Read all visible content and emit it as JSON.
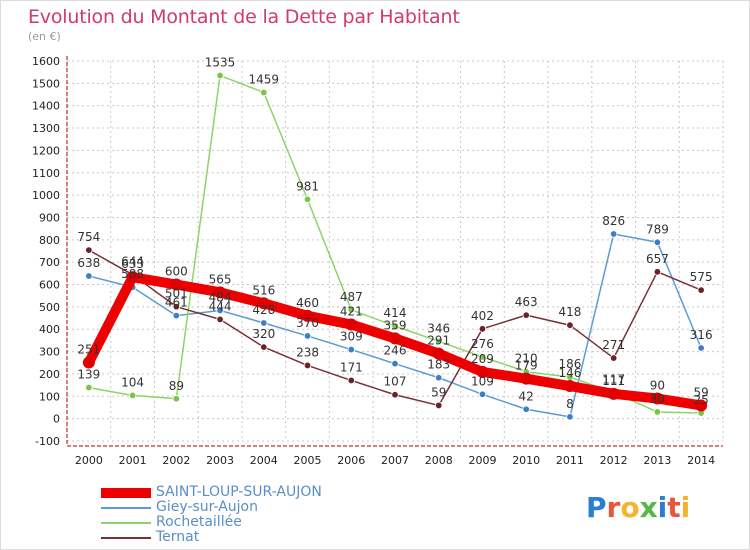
{
  "title": "Evolution du Montant de la Dette par Habitant",
  "subtitle": "(en €)",
  "logo_text": "Proxiti",
  "colors": {
    "title": "#d23a6a",
    "grid": "#c8c8c8",
    "axis": "#b00000"
  },
  "chart_data": {
    "type": "line",
    "title": "Evolution du Montant de la Dette par Habitant",
    "subtitle": "(en €)",
    "xlabel": "",
    "ylabel": "",
    "x": [
      "2000",
      "2001",
      "2002",
      "2003",
      "2004",
      "2005",
      "2006",
      "2007",
      "2008",
      "2009",
      "2010",
      "2011",
      "2012",
      "2013",
      "2014"
    ],
    "ylim": [
      -100,
      1600
    ],
    "yticks": [
      -100,
      0,
      100,
      200,
      300,
      400,
      500,
      600,
      700,
      800,
      900,
      1000,
      1100,
      1200,
      1300,
      1400,
      1500,
      1600
    ],
    "grid": true,
    "legend_position": "bottom-left",
    "series": [
      {
        "name": "SAINT-LOUP-SUR-AUJON",
        "color": "#ee0000",
        "marker": "#e00000",
        "values": [
          251,
          633,
          600,
          565,
          516,
          460,
          421,
          359,
          291,
          209,
          179,
          146,
          111,
          90,
          59
        ]
      },
      {
        "name": "Giey-sur-Aujon",
        "color": "#5b9bd5",
        "marker": "#3a7fc8",
        "values": [
          638,
          588,
          461,
          484,
          428,
          370,
          309,
          246,
          183,
          109,
          42,
          8,
          826,
          789,
          316
        ]
      },
      {
        "name": "Rochetaillée",
        "color": "#8ed36a",
        "marker": "#77c64a",
        "values": [
          139,
          104,
          89,
          1535,
          1459,
          981,
          487,
          414,
          346,
          276,
          210,
          186,
          117,
          30,
          25
        ]
      },
      {
        "name": "Ternat",
        "color": "#7a2f35",
        "marker": "#6a2228",
        "values": [
          754,
          644,
          501,
          444,
          320,
          238,
          171,
          107,
          59,
          402,
          463,
          418,
          271,
          657,
          575
        ]
      }
    ],
    "data_labels": [
      [
        251,
        633,
        600,
        565,
        516,
        460,
        421,
        359,
        291,
        209,
        179,
        146,
        111,
        90,
        59
      ],
      [
        638,
        588,
        461,
        484,
        428,
        370,
        309,
        246,
        183,
        109,
        42,
        8,
        826,
        789,
        316
      ],
      [
        139,
        104,
        89,
        1535,
        1459,
        981,
        487,
        414,
        346,
        276,
        210,
        186,
        117,
        30,
        25
      ],
      [
        754,
        644,
        501,
        444,
        320,
        238,
        171,
        107,
        59,
        402,
        463,
        418,
        271,
        657,
        575
      ]
    ]
  }
}
